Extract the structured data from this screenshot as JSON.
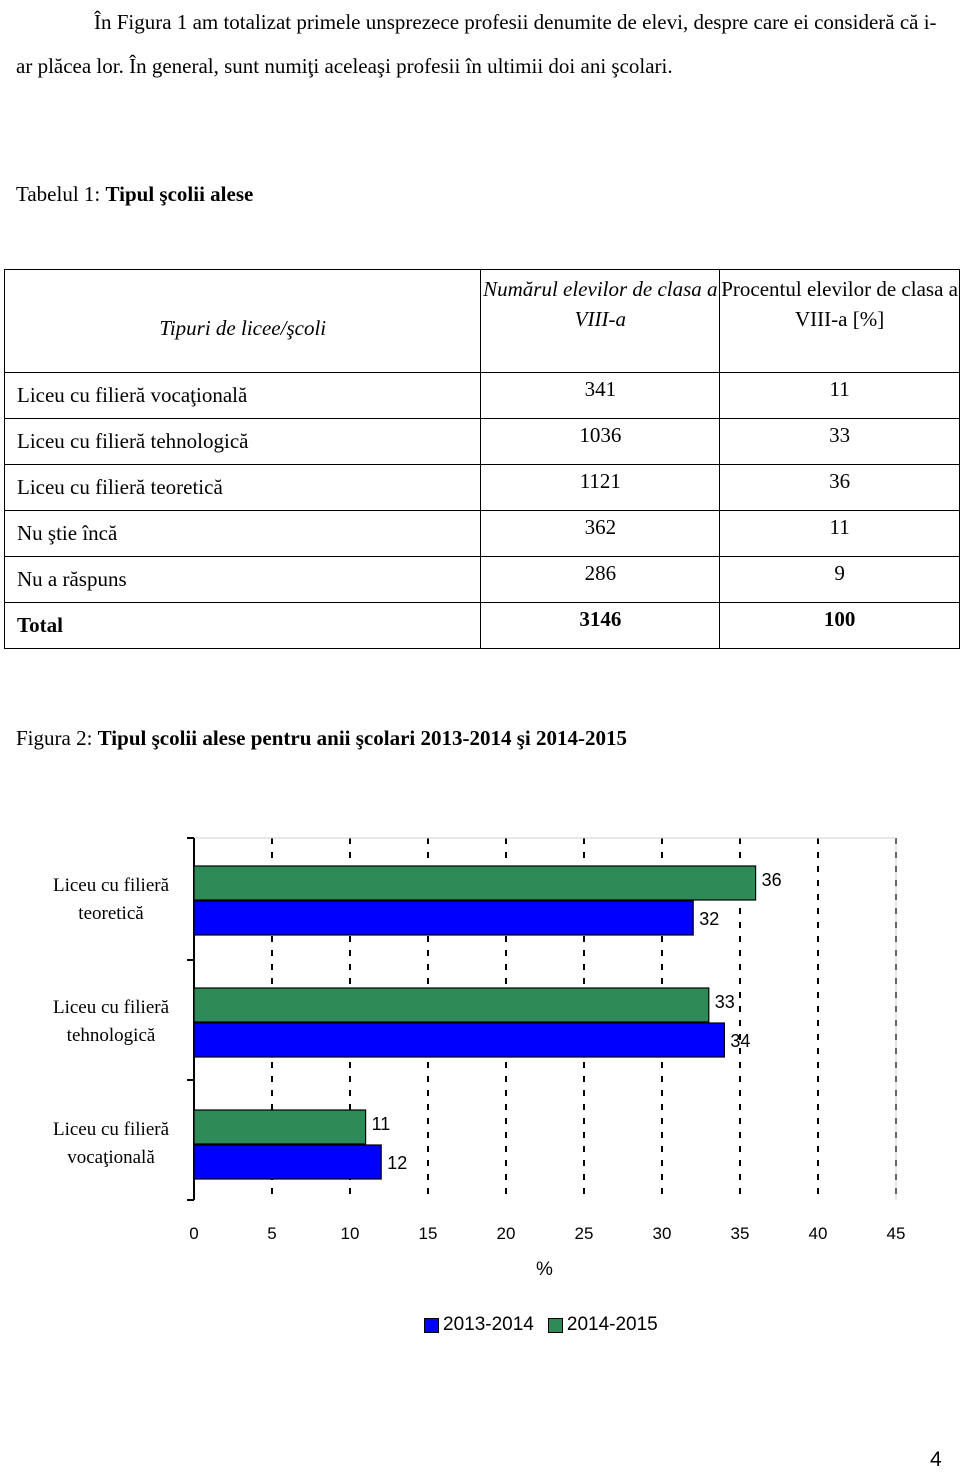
{
  "paragraph": {
    "text": "În Figura 1 am totalizat primele unsprezece profesii denumite de elevi, despre care ei consideră că i-ar plăcea lor. În general, sunt numiţi aceleaşi profesii în ultimii doi ani şcolari."
  },
  "table1": {
    "caption_prefix": "Tabelul 1: ",
    "caption_title": "Tipul şcolii alese",
    "headers": [
      "Tipuri de licee/şcoli",
      "Numărul elevilor de clasa a VIII-a",
      "Procentul elevilor de clasa a VIII-a [%]"
    ],
    "rows": [
      {
        "label": "Liceu cu filieră vocaţională",
        "count": "341",
        "percent": "11"
      },
      {
        "label": "Liceu cu filieră tehnologică",
        "count": "1036",
        "percent": "33"
      },
      {
        "label": "Liceu cu filieră teoretică",
        "count": "1121",
        "percent": "36"
      },
      {
        "label": "Nu ştie încă",
        "count": "362",
        "percent": "11"
      },
      {
        "label": "Nu a răspuns",
        "count": "286",
        "percent": "9"
      },
      {
        "label": "Total",
        "count": "3146",
        "percent": "100"
      }
    ]
  },
  "figure2": {
    "caption_prefix": "Figura 2: ",
    "caption_title": "Tipul şcolii alese pentru anii şcolari 2013-2014 şi 2014-2015"
  },
  "chart_data": {
    "type": "bar",
    "orientation": "horizontal",
    "categories": [
      "Liceu cu filieră teoretică",
      "Liceu cu filieră tehnologică",
      "Liceu cu filieră vocaţională"
    ],
    "series": [
      {
        "name": "2013-2014",
        "values": [
          32,
          34,
          12
        ],
        "color": "#0000ff"
      },
      {
        "name": "2014-2015",
        "values": [
          36,
          33,
          11
        ],
        "color": "#2e8b57"
      }
    ],
    "xlabel": "%",
    "xlim": [
      0,
      45
    ],
    "xticks": [
      "0",
      "5",
      "10",
      "15",
      "20",
      "25",
      "30",
      "35",
      "40",
      "45"
    ],
    "grid": "vertical dashed",
    "legend": "bottom"
  },
  "page_number": "4"
}
